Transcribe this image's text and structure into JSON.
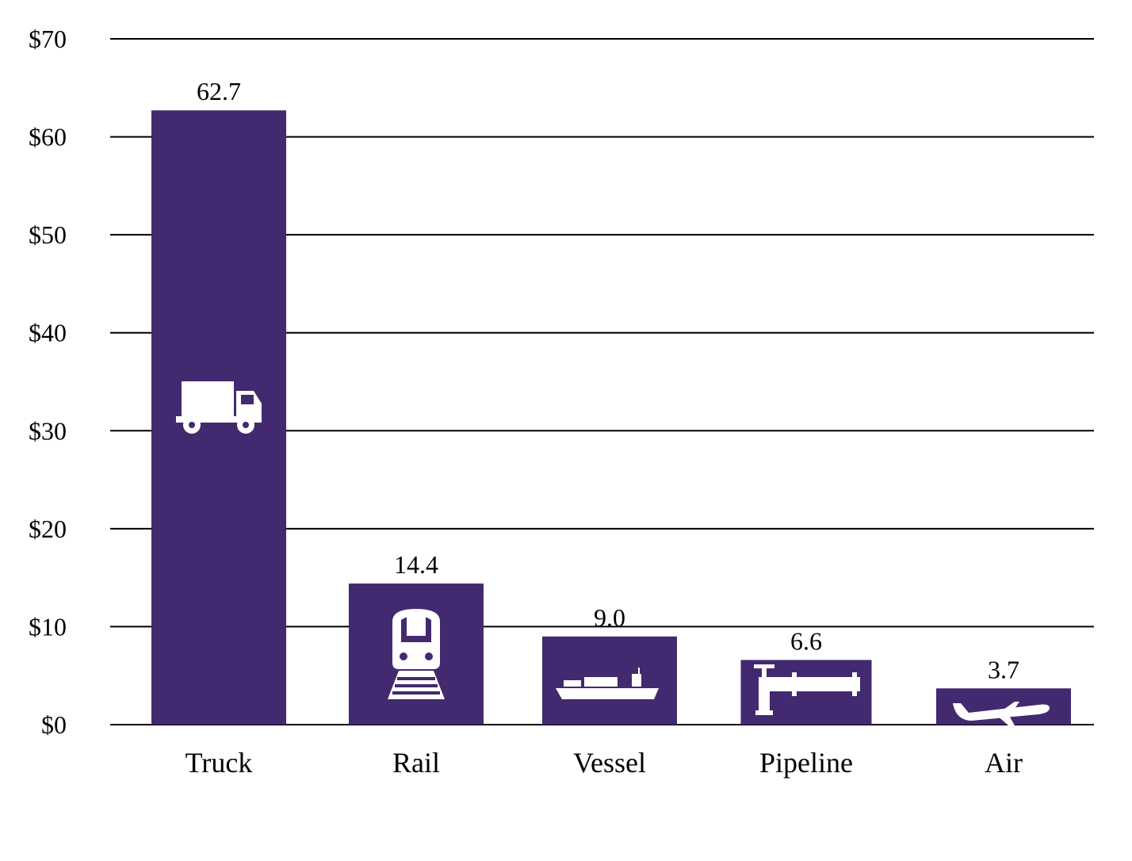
{
  "chart_data": {
    "type": "bar",
    "categories": [
      "Truck",
      "Rail",
      "Vessel",
      "Pipeline",
      "Air"
    ],
    "values": [
      62.7,
      14.4,
      9.0,
      6.6,
      3.7
    ],
    "value_labels": [
      "62.7",
      "14.4",
      "9.0",
      "6.6",
      "3.7"
    ],
    "y_tick_labels": [
      "$0",
      "$10",
      "$20",
      "$30",
      "$40",
      "$50",
      "$60",
      "$70"
    ],
    "y_ticks": [
      0,
      10,
      20,
      30,
      40,
      50,
      60,
      70
    ],
    "ylim": [
      0,
      70
    ],
    "grid": true,
    "legend": "none",
    "bar_icons": [
      "truck-icon",
      "train-icon",
      "ship-icon",
      "pipeline-icon",
      "airplane-icon"
    ],
    "colors": {
      "bar": "#43296f",
      "icon": "#ffffff",
      "grid": "#000000"
    }
  }
}
